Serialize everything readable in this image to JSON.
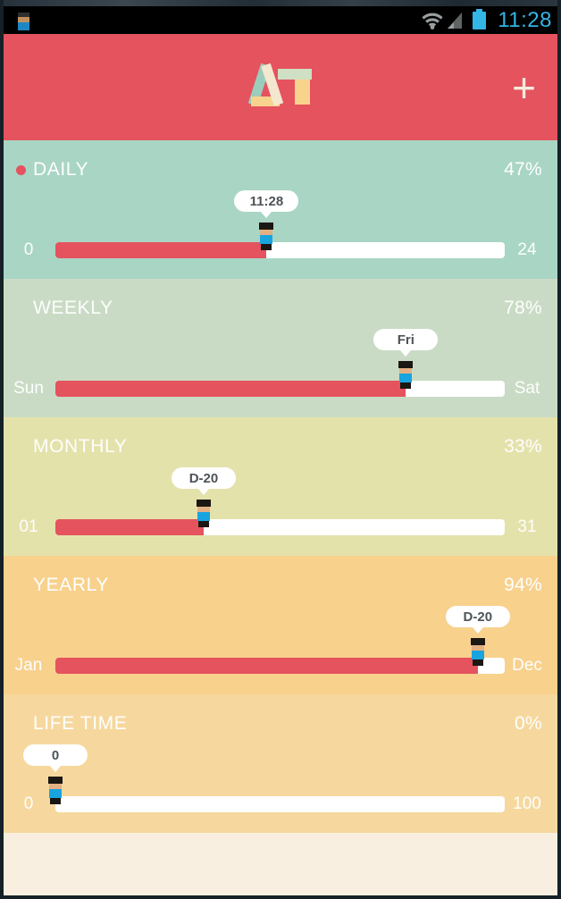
{
  "status_bar": {
    "time": "11:28",
    "icons": {
      "left_notification": "person-figure-icon",
      "right_1": "wifi-icon",
      "right_2": "cell-signal-icon",
      "right_3": "battery-icon"
    }
  },
  "header": {
    "logo": {
      "text": "AT",
      "a_left_color": "#9cccbb",
      "a_right_color": "#f3e7cf",
      "a_bottom_color": "#f8d38e",
      "t_bar_color": "#cfe0c4",
      "t_stem_color": "#f8d38e"
    },
    "add_button_label": "+",
    "bg_color": "#e4535e"
  },
  "sections": [
    {
      "title": "DAILY",
      "percent_label": "47%",
      "value": 47,
      "tooltip": "11:28",
      "min_label": "0",
      "max_label": "24",
      "bg_color": "#a9d5c5",
      "active_dot": true
    },
    {
      "title": "WEEKLY",
      "percent_label": "78%",
      "value": 78,
      "tooltip": "Fri",
      "min_label": "Sun",
      "max_label": "Sat",
      "bg_color": "#cadbc5",
      "active_dot": false
    },
    {
      "title": "MONTHLY",
      "percent_label": "33%",
      "value": 33,
      "tooltip": "D-20",
      "min_label": "01",
      "max_label": "31",
      "bg_color": "#e4e2ab",
      "active_dot": false
    },
    {
      "title": "YEARLY",
      "percent_label": "94%",
      "value": 94,
      "tooltip": "D-20",
      "min_label": "Jan",
      "max_label": "Dec",
      "bg_color": "#f8d18d",
      "active_dot": false
    },
    {
      "title": "LIFE TIME",
      "percent_label": "0%",
      "value": 0,
      "tooltip": "0",
      "min_label": "0",
      "max_label": "100",
      "bg_color": "#f6d89e",
      "active_dot": false
    }
  ],
  "colors": {
    "accent_red": "#e4535e",
    "track_white": "#ffffff",
    "holo_blue": "#33b5e5",
    "figure_hat": "#1b1713",
    "figure_skin": "#e3b083",
    "figure_shirt": "#19a4e0",
    "tooltip_bg": "#ffffff",
    "tooltip_text": "#4d5357",
    "statusbar_bg": "#000000",
    "icon_gray": "#999fa1",
    "notif_skin": "#bf8f60",
    "notif_shirt": "#1d87c4",
    "notif_hat": "#2e2e2e",
    "footer_bg": "#f9efe0"
  }
}
